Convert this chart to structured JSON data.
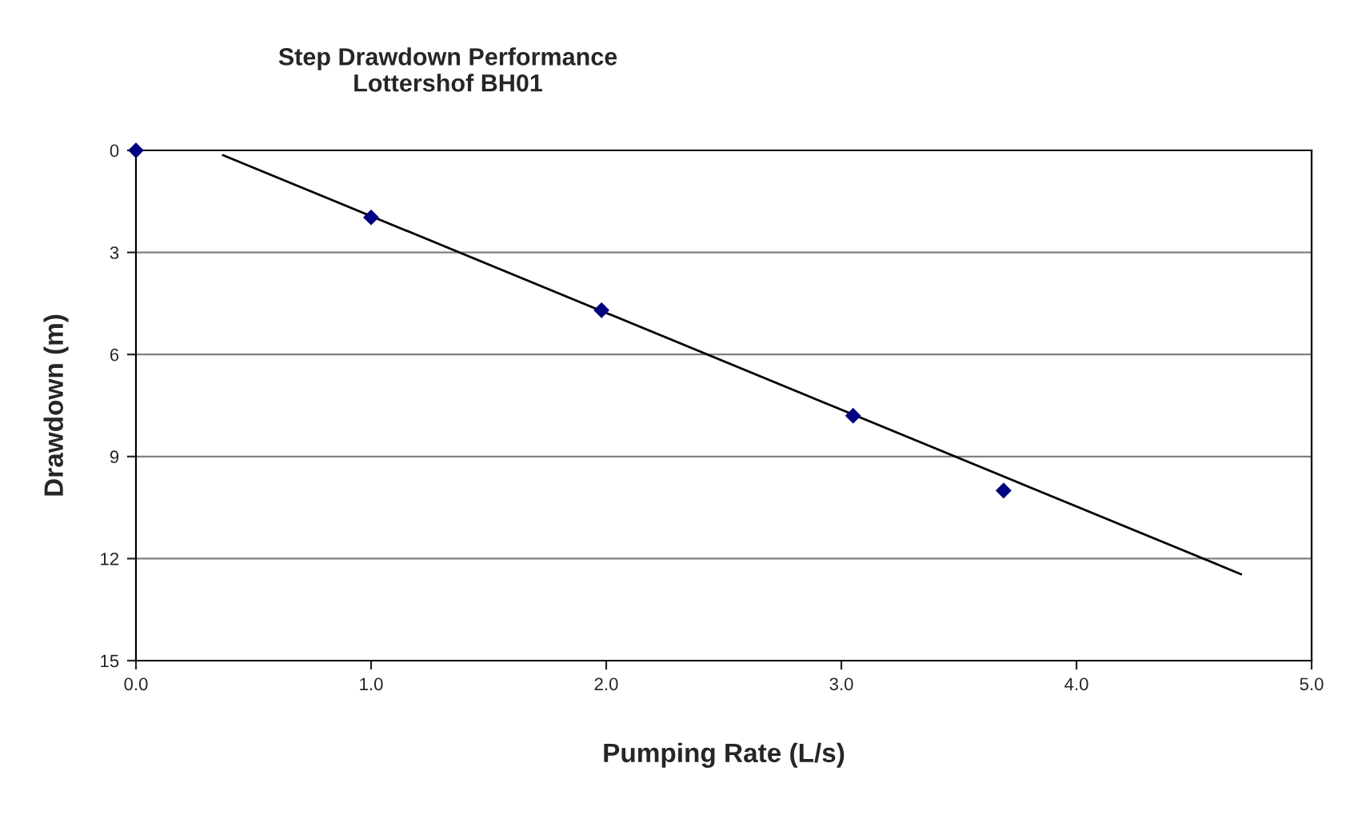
{
  "chart_data": {
    "type": "scatter",
    "title": "Step Drawdown Performance\nLottershof BH01",
    "xlabel": "Pumping Rate (L/s)",
    "ylabel": "Drawdown (m)",
    "series": [
      {
        "color": "#000080",
        "marker": "diamond",
        "x": [
          0.0,
          1.0,
          1.98,
          3.05,
          3.69
        ],
        "values": [
          0.0,
          1.97,
          4.7,
          7.8,
          10.0
        ]
      },
      {
        "type": "line",
        "color": "#000000",
        "marker": "none",
        "line_style": "solid",
        "x": [
          0.37,
          4.7
        ],
        "values": [
          0.14,
          12.46
        ]
      }
    ],
    "xlim": [
      0,
      5
    ],
    "xticks": [
      {
        "value": 0,
        "label": "0.0"
      },
      {
        "value": 1,
        "label": "1.0"
      },
      {
        "value": 2,
        "label": "2.0"
      },
      {
        "value": 3,
        "label": "3.0"
      },
      {
        "value": 4,
        "label": "4.0"
      },
      {
        "value": 5,
        "label": "5.0"
      }
    ],
    "ylim": [
      15,
      0
    ],
    "yticks": [
      0,
      3,
      6,
      9,
      12,
      15
    ],
    "grid": "y",
    "legend": false
  }
}
